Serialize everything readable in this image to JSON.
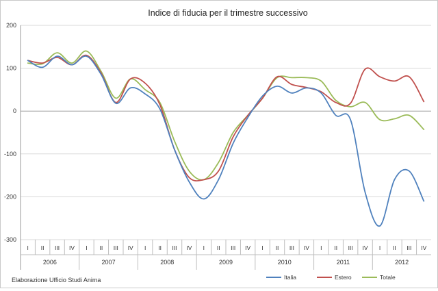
{
  "chart_data": {
    "type": "line",
    "title": "Indice di fiducia per il trimestre successivo",
    "source_note": "Elaborazione Ufficio Studi Anima",
    "ylim": [
      -300,
      200
    ],
    "yticks": [
      "200",
      "100",
      "0",
      "-100",
      "-200",
      "-300"
    ],
    "grid": true,
    "legend_position": "bottom-right",
    "categories": [
      "I",
      "II",
      "III",
      "IV",
      "I",
      "II",
      "III",
      "IV",
      "I",
      "II",
      "III",
      "IV",
      "I",
      "II",
      "III",
      "IV",
      "I",
      "II",
      "III",
      "IV",
      "I",
      "II",
      "III",
      "IV",
      "I",
      "II",
      "III",
      "IV"
    ],
    "years": [
      "2006",
      "2007",
      "2008",
      "2009",
      "2010",
      "2011",
      "2012"
    ],
    "series": [
      {
        "name": "Italia",
        "color": "#4f81bd",
        "values": [
          118,
          102,
          128,
          108,
          128,
          85,
          18,
          54,
          40,
          5,
          -90,
          -165,
          -205,
          -160,
          -75,
          -15,
          35,
          58,
          42,
          54,
          42,
          -10,
          -20,
          -190,
          -268,
          -160,
          -140,
          -210
        ]
      },
      {
        "name": "Estero",
        "color": "#c0504d",
        "values": [
          118,
          112,
          125,
          108,
          130,
          88,
          20,
          75,
          65,
          15,
          -90,
          -155,
          -160,
          -140,
          -60,
          -10,
          30,
          80,
          62,
          55,
          45,
          20,
          18,
          98,
          80,
          70,
          80,
          22
        ]
      },
      {
        "name": "Totale",
        "color": "#9bbb59",
        "values": [
          112,
          110,
          136,
          112,
          140,
          92,
          30,
          75,
          50,
          20,
          -70,
          -140,
          -160,
          -120,
          -50,
          -10,
          30,
          78,
          78,
          78,
          70,
          25,
          10,
          20,
          -20,
          -18,
          -10,
          -43
        ]
      }
    ]
  }
}
